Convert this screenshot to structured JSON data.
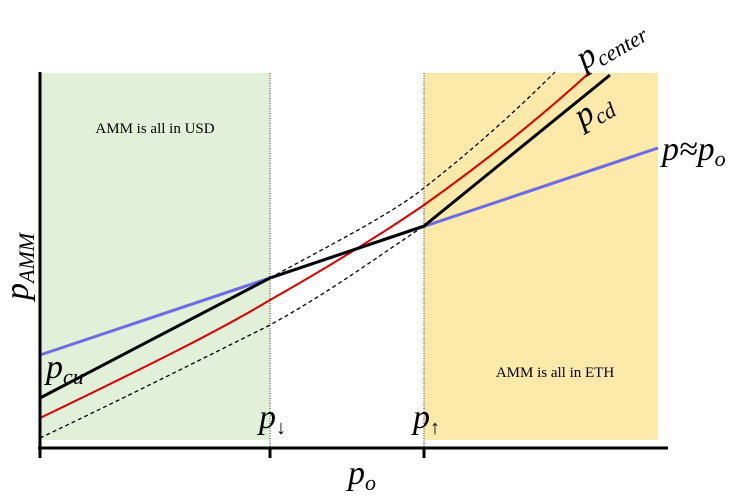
{
  "regions": {
    "left": "AMM is all in USD",
    "right": "AMM is all in ETH"
  },
  "curve_labels": {
    "center": {
      "base": "p",
      "sub": "center"
    },
    "cd": {
      "base": "p",
      "sub": "cd"
    },
    "approx": {
      "base": "p≈p",
      "sub": "o"
    },
    "cu": {
      "base": "p",
      "sub": "cu"
    }
  },
  "axes": {
    "x_label": {
      "base": "p",
      "sub": "o"
    },
    "y_label": {
      "base": "p",
      "sub": "AMM"
    },
    "ticks": [
      {
        "base": "p",
        "sub": "↓"
      },
      {
        "base": "p",
        "sub": "↑"
      }
    ]
  }
}
